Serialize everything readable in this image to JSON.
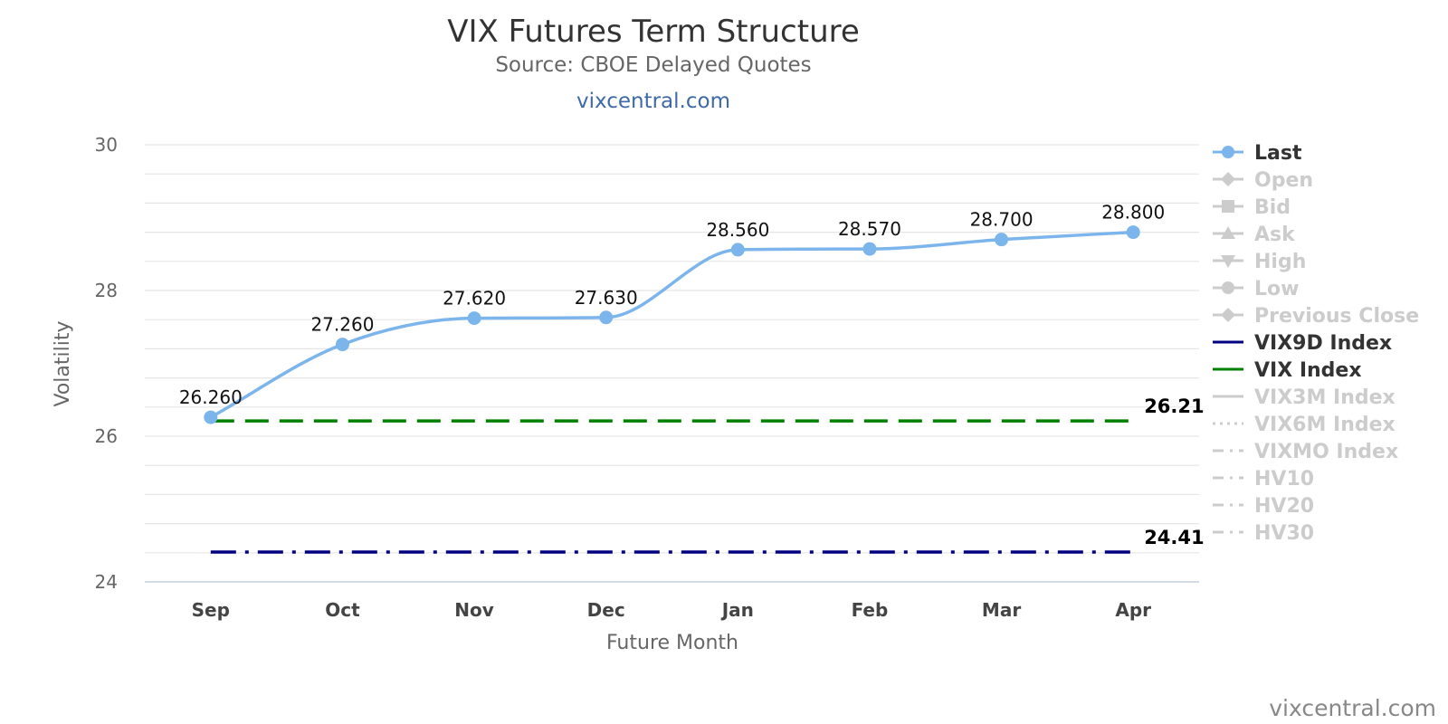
{
  "header": {
    "title": "VIX Futures Term Structure",
    "subtitle": "Source: CBOE Delayed Quotes",
    "site": "vixcentral.com"
  },
  "footer": {
    "credit": "vixcentral.com"
  },
  "chart_data": {
    "type": "line",
    "title": "VIX Futures Term Structure",
    "subtitle": "Source: CBOE Delayed Quotes",
    "xlabel": "Future Month",
    "ylabel": "Volatility",
    "categories": [
      "Sep",
      "Oct",
      "Nov",
      "Dec",
      "Jan",
      "Feb",
      "Mar",
      "Apr"
    ],
    "ylim": [
      24,
      30
    ],
    "yticks": [
      24,
      26,
      28,
      30
    ],
    "grid": true,
    "legend_position": "right",
    "series": [
      {
        "name": "Last",
        "values": [
          26.26,
          27.26,
          27.62,
          27.63,
          28.56,
          28.57,
          28.7,
          28.8
        ],
        "labels": [
          "26.260",
          "27.260",
          "27.620",
          "27.630",
          "28.560",
          "28.570",
          "28.700",
          "28.800"
        ],
        "color": "#7cb5ec",
        "style": "solid-spline"
      }
    ],
    "reference_lines": [
      {
        "name": "VIX Index",
        "value": 26.21,
        "label": "26.21",
        "color": "#008000",
        "style": "dash"
      },
      {
        "name": "VIX9D Index",
        "value": 24.41,
        "label": "24.41",
        "color": "#000080",
        "style": "dashdot"
      }
    ],
    "legend": [
      {
        "name": "Last",
        "active": true,
        "symbol": "circle",
        "line": "solid",
        "color": "#7cb5ec"
      },
      {
        "name": "Open",
        "active": false,
        "symbol": "diamond",
        "line": "solid",
        "color": "#cccccc"
      },
      {
        "name": "Bid",
        "active": false,
        "symbol": "square",
        "line": "solid",
        "color": "#cccccc"
      },
      {
        "name": "Ask",
        "active": false,
        "symbol": "triangle",
        "line": "solid",
        "color": "#cccccc"
      },
      {
        "name": "High",
        "active": false,
        "symbol": "triangle-down",
        "line": "solid",
        "color": "#cccccc"
      },
      {
        "name": "Low",
        "active": false,
        "symbol": "circle",
        "line": "solid",
        "color": "#cccccc"
      },
      {
        "name": "Previous Close",
        "active": false,
        "symbol": "diamond",
        "line": "solid",
        "color": "#cccccc"
      },
      {
        "name": "VIX9D Index",
        "active": true,
        "symbol": "none",
        "line": "solid",
        "color": "#000080"
      },
      {
        "name": "VIX Index",
        "active": true,
        "symbol": "none",
        "line": "solid",
        "color": "#008000"
      },
      {
        "name": "VIX3M Index",
        "active": false,
        "symbol": "none",
        "line": "solid",
        "color": "#cccccc"
      },
      {
        "name": "VIX6M Index",
        "active": false,
        "symbol": "none",
        "line": "dotted",
        "color": "#cccccc"
      },
      {
        "name": "VIXMO Index",
        "active": false,
        "symbol": "none",
        "line": "dashdot",
        "color": "#cccccc"
      },
      {
        "name": "HV10",
        "active": false,
        "symbol": "none",
        "line": "dashdot",
        "color": "#cccccc"
      },
      {
        "name": "HV20",
        "active": false,
        "symbol": "none",
        "line": "dashdot",
        "color": "#cccccc"
      },
      {
        "name": "HV30",
        "active": false,
        "symbol": "none",
        "line": "dashdot",
        "color": "#cccccc"
      }
    ],
    "colors": {
      "active_text": "#333333",
      "inactive_text": "#cccccc",
      "grid": "#e6e6e6"
    }
  }
}
